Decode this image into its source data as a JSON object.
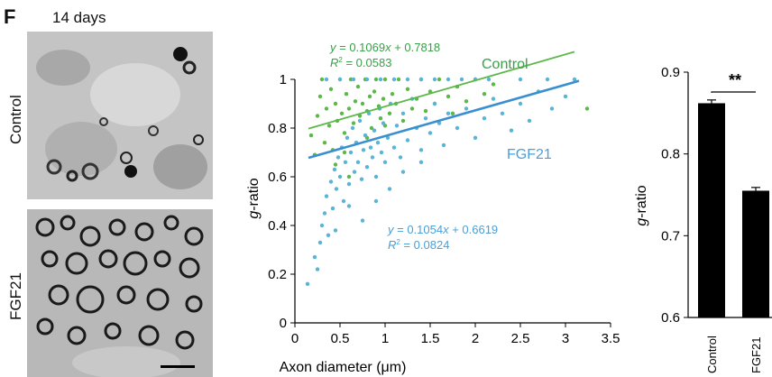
{
  "figure": {
    "panel_letter": "F",
    "timepoint": "14 days",
    "row_labels": [
      "Control",
      "FGF21"
    ]
  },
  "colors": {
    "control": "#5cb848",
    "fgf21": "#5ab4d6",
    "fgf21_line": "#3a8fd0",
    "control_label": "#3aa04a",
    "fgf21_label": "#4a9fd8",
    "bar": "#000000"
  },
  "chart_data": [
    {
      "type": "scatter",
      "title": "",
      "xlabel_prefix": "Axon diameter (",
      "xlabel_unit": "μm",
      "xlabel_suffix": ")",
      "ylabel_italic": "g",
      "ylabel_rest": "-ratio",
      "xlim": [
        0,
        3.5
      ],
      "ylim": [
        0,
        1
      ],
      "x_ticks": [
        "0",
        "0.5",
        "1",
        "1.5",
        "2",
        "2.5",
        "3",
        "3.5"
      ],
      "y_ticks": [
        "0",
        "0.2",
        "0.4",
        "0.6",
        "0.8",
        "1"
      ],
      "series": [
        {
          "name": "Control",
          "slope": 0.1069,
          "intercept": 0.7818,
          "fit_x_range": [
            0.15,
            3.1
          ],
          "eq_y": "y",
          "eq_rest": " = 0.1069",
          "eq_x": "x",
          "eq_tail": " + 0.7818",
          "r2_r": "R",
          "r2_sup": "2",
          "r2_val": " = 0.0583",
          "points": [
            [
              0.18,
              0.77
            ],
            [
              0.22,
              0.69
            ],
            [
              0.25,
              0.85
            ],
            [
              0.28,
              0.93
            ],
            [
              0.3,
              1.0
            ],
            [
              0.33,
              0.74
            ],
            [
              0.35,
              0.88
            ],
            [
              0.38,
              0.81
            ],
            [
              0.4,
              0.96
            ],
            [
              0.42,
              0.71
            ],
            [
              0.45,
              0.9
            ],
            [
              0.47,
              0.83
            ],
            [
              0.5,
              1.0
            ],
            [
              0.52,
              0.86
            ],
            [
              0.55,
              0.78
            ],
            [
              0.57,
              0.94
            ],
            [
              0.6,
              0.88
            ],
            [
              0.62,
              1.0
            ],
            [
              0.65,
              0.82
            ],
            [
              0.67,
              0.91
            ],
            [
              0.7,
              0.97
            ],
            [
              0.72,
              0.85
            ],
            [
              0.75,
              0.9
            ],
            [
              0.78,
              1.0
            ],
            [
              0.8,
              0.87
            ],
            [
              0.83,
              0.93
            ],
            [
              0.85,
              0.8
            ],
            [
              0.88,
              0.95
            ],
            [
              0.9,
              1.0
            ],
            [
              0.93,
              0.89
            ],
            [
              0.95,
              0.84
            ],
            [
              0.98,
              0.92
            ],
            [
              1.0,
              1.0
            ],
            [
              1.05,
              0.86
            ],
            [
              1.08,
              0.94
            ],
            [
              1.12,
              0.9
            ],
            [
              1.15,
              1.0
            ],
            [
              1.2,
              0.83
            ],
            [
              1.25,
              0.96
            ],
            [
              1.3,
              0.88
            ],
            [
              1.35,
              0.92
            ],
            [
              1.4,
              1.0
            ],
            [
              1.45,
              0.87
            ],
            [
              1.5,
              0.95
            ],
            [
              1.55,
              0.9
            ],
            [
              1.6,
              1.0
            ],
            [
              1.7,
              0.93
            ],
            [
              1.75,
              0.86
            ],
            [
              1.8,
              0.97
            ],
            [
              1.9,
              0.91
            ],
            [
              2.0,
              1.0
            ],
            [
              2.1,
              0.94
            ],
            [
              2.2,
              0.98
            ],
            [
              0.45,
              0.65
            ],
            [
              0.55,
              0.7
            ],
            [
              0.68,
              0.74
            ],
            [
              0.6,
              0.6
            ],
            [
              0.8,
              0.76
            ],
            [
              1.0,
              0.81
            ],
            [
              3.24,
              0.88
            ]
          ]
        },
        {
          "name": "FGF21",
          "slope": 0.1054,
          "intercept": 0.6619,
          "fit_x_range": [
            0.15,
            3.15
          ],
          "eq_y": "y",
          "eq_rest": " = 0.1054",
          "eq_x": "x",
          "eq_tail": " + 0.6619",
          "r2_r": "R",
          "r2_sup": "2",
          "r2_val": " = 0.0824",
          "points": [
            [
              0.14,
              0.16
            ],
            [
              0.22,
              0.27
            ],
            [
              0.25,
              0.22
            ],
            [
              0.28,
              0.33
            ],
            [
              0.3,
              0.4
            ],
            [
              0.33,
              0.45
            ],
            [
              0.35,
              0.52
            ],
            [
              0.37,
              0.36
            ],
            [
              0.4,
              0.58
            ],
            [
              0.42,
              0.47
            ],
            [
              0.44,
              0.63
            ],
            [
              0.46,
              0.55
            ],
            [
              0.48,
              0.68
            ],
            [
              0.5,
              0.6
            ],
            [
              0.52,
              0.72
            ],
            [
              0.54,
              0.5
            ],
            [
              0.56,
              0.66
            ],
            [
              0.58,
              0.76
            ],
            [
              0.6,
              0.57
            ],
            [
              0.62,
              0.7
            ],
            [
              0.64,
              0.8
            ],
            [
              0.66,
              0.62
            ],
            [
              0.68,
              0.74
            ],
            [
              0.7,
              0.66
            ],
            [
              0.72,
              0.83
            ],
            [
              0.74,
              0.59
            ],
            [
              0.76,
              0.71
            ],
            [
              0.78,
              0.77
            ],
            [
              0.8,
              0.64
            ],
            [
              0.82,
              0.86
            ],
            [
              0.84,
              0.72
            ],
            [
              0.86,
              0.68
            ],
            [
              0.88,
              0.79
            ],
            [
              0.9,
              0.6
            ],
            [
              0.92,
              0.74
            ],
            [
              0.94,
              0.88
            ],
            [
              0.96,
              0.7
            ],
            [
              0.98,
              0.82
            ],
            [
              1.0,
              0.66
            ],
            [
              1.03,
              0.76
            ],
            [
              1.06,
              0.9
            ],
            [
              1.1,
              0.72
            ],
            [
              1.13,
              0.81
            ],
            [
              1.17,
              0.68
            ],
            [
              1.2,
              0.86
            ],
            [
              1.25,
              0.75
            ],
            [
              1.3,
              0.92
            ],
            [
              1.35,
              0.8
            ],
            [
              1.4,
              0.71
            ],
            [
              1.45,
              0.84
            ],
            [
              1.5,
              0.78
            ],
            [
              1.55,
              0.9
            ],
            [
              1.6,
              0.82
            ],
            [
              1.65,
              0.73
            ],
            [
              1.7,
              0.86
            ],
            [
              1.8,
              0.8
            ],
            [
              1.9,
              0.88
            ],
            [
              2.0,
              0.76
            ],
            [
              2.1,
              0.84
            ],
            [
              2.2,
              0.92
            ],
            [
              2.3,
              0.86
            ],
            [
              2.4,
              0.79
            ],
            [
              2.5,
              0.9
            ],
            [
              2.6,
              0.83
            ],
            [
              2.7,
              0.95
            ],
            [
              2.85,
              0.88
            ],
            [
              3.0,
              0.93
            ],
            [
              0.35,
              1.0
            ],
            [
              0.5,
              1.0
            ],
            [
              0.65,
              1.0
            ],
            [
              0.8,
              1.0
            ],
            [
              0.95,
              1.0
            ],
            [
              1.1,
              1.0
            ],
            [
              1.25,
              1.0
            ],
            [
              1.4,
              1.0
            ],
            [
              1.55,
              1.0
            ],
            [
              1.7,
              1.0
            ],
            [
              1.85,
              1.0
            ],
            [
              2.0,
              1.0
            ],
            [
              2.15,
              1.0
            ],
            [
              2.5,
              1.0
            ],
            [
              2.8,
              1.0
            ],
            [
              3.1,
              1.0
            ],
            [
              0.9,
              0.5
            ],
            [
              0.75,
              0.42
            ],
            [
              1.05,
              0.55
            ],
            [
              1.2,
              0.62
            ],
            [
              0.6,
              0.48
            ],
            [
              0.45,
              0.38
            ],
            [
              1.4,
              0.66
            ]
          ]
        }
      ]
    },
    {
      "type": "bar",
      "title": "",
      "categories": [
        "Control",
        "FGF21"
      ],
      "values": [
        0.862,
        0.755
      ],
      "errors": [
        0.004,
        0.004
      ],
      "ylim": [
        0.6,
        0.9
      ],
      "y_ticks": [
        "0.6",
        "0.7",
        "0.8",
        "0.9"
      ],
      "ylabel_italic": "g",
      "ylabel_rest": "-ratio",
      "significance": "**"
    }
  ]
}
